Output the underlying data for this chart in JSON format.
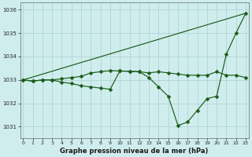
{
  "xlabel": "Graphe pression niveau de la mer (hPa)",
  "bg_color": "#d0eded",
  "grid_color": "#b0d4d4",
  "line_color": "#1a5c1a",
  "xlim": [
    -0.3,
    23.3
  ],
  "ylim": [
    1030.5,
    1036.3
  ],
  "yticks": [
    1031,
    1032,
    1033,
    1034,
    1035,
    1036
  ],
  "xticks": [
    0,
    1,
    2,
    3,
    4,
    5,
    6,
    7,
    8,
    9,
    10,
    11,
    12,
    13,
    14,
    15,
    16,
    17,
    18,
    19,
    20,
    21,
    22,
    23
  ],
  "line1_x": [
    0,
    23
  ],
  "line1_y": [
    1033.0,
    1035.85
  ],
  "line2_x": [
    0,
    1,
    2,
    3,
    4,
    5,
    6,
    7,
    8,
    9,
    10,
    11,
    12,
    13,
    14,
    15,
    16,
    17,
    18,
    19,
    20,
    21,
    22,
    23
  ],
  "line2_y": [
    1033.0,
    1032.95,
    1033.0,
    1033.0,
    1033.05,
    1033.1,
    1033.15,
    1033.3,
    1033.35,
    1033.4,
    1033.38,
    1033.37,
    1033.35,
    1033.3,
    1033.35,
    1033.3,
    1033.25,
    1033.2,
    1033.2,
    1033.2,
    1033.35,
    1033.2,
    1033.2,
    1033.1
  ],
  "line3_x": [
    0,
    1,
    2,
    3,
    4,
    5,
    6,
    7,
    8,
    9,
    10,
    11,
    12,
    13,
    14,
    15,
    16,
    17,
    18,
    19,
    20,
    21,
    22,
    23
  ],
  "line3_y": [
    1033.0,
    1032.95,
    1033.0,
    1033.0,
    1032.9,
    1032.85,
    1032.75,
    1032.7,
    1032.65,
    1032.6,
    1033.38,
    1033.37,
    1033.35,
    1033.1,
    1032.7,
    1032.3,
    1031.05,
    1031.2,
    1031.7,
    1032.2,
    1032.3,
    1034.1,
    1035.0,
    1035.85
  ]
}
